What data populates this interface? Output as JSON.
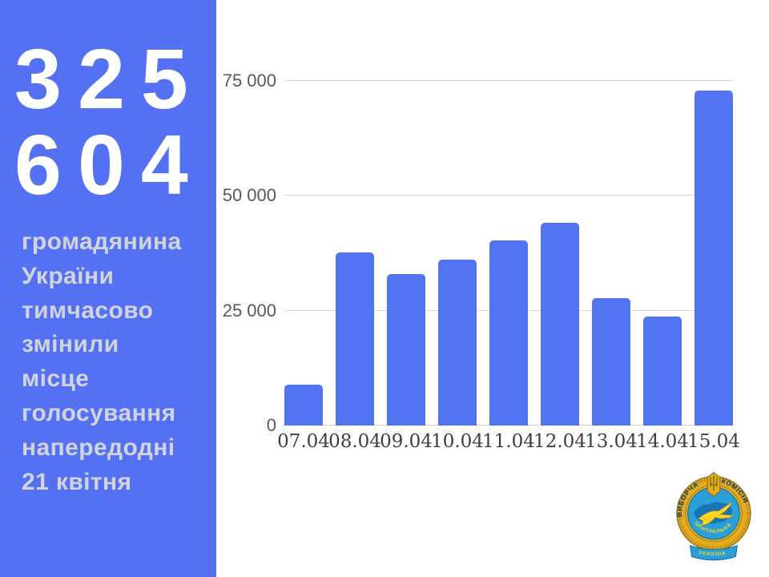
{
  "panel": {
    "background": "#5371f2",
    "big_number_line1": "325",
    "big_number_line2": "604",
    "caption_color": "#d2d4dd",
    "caption_lines": [
      "громадянина",
      "України",
      "тимчасово",
      "змінили",
      "місце",
      "голосування",
      "напередодні",
      "21 квітня"
    ]
  },
  "chart_data": {
    "type": "bar",
    "title": "",
    "xlabel": "",
    "ylabel": "",
    "categories": [
      "07.04",
      "08.04",
      "09.04",
      "10.04",
      "11.04",
      "12.04",
      "13.04",
      "14.04",
      "15.04"
    ],
    "values": [
      8900,
      37700,
      33000,
      36100,
      40300,
      44100,
      27700,
      23700,
      72900
    ],
    "ylim": [
      0,
      75000
    ],
    "yticks": [
      0,
      25000,
      50000,
      75000
    ],
    "ytick_labels": [
      "0",
      "25 000",
      "50 000",
      "75 000"
    ],
    "bar_color": "#5273f2",
    "gridline_color": "#d9d9d9",
    "grid": true,
    "legend": "none"
  },
  "logo": {
    "name": "Центральна виборча комісія України",
    "text_top_left": "ВИБОРЧА",
    "text_top_right": "КОМІСІЯ",
    "text_bottom_arc": "ЦЕНТРАЛЬНА",
    "ribbon_text": "УКРАЇНА",
    "gold": "#e3ad1f",
    "blue": "#2aa0da"
  }
}
